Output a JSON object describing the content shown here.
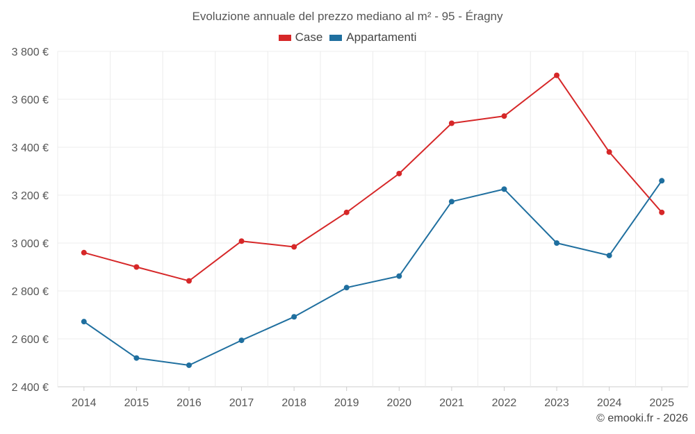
{
  "chart_data": {
    "type": "line",
    "title": "Evoluzione annuale del prezzo mediano al m² - 95 - Éragny",
    "categories": [
      "2014",
      "2015",
      "2016",
      "2017",
      "2018",
      "2019",
      "2020",
      "2021",
      "2022",
      "2023",
      "2024",
      "2025"
    ],
    "series": [
      {
        "name": "Case",
        "color": "#d62728",
        "values": [
          2960,
          2900,
          2842,
          3008,
          2984,
          3128,
          3290,
          3500,
          3530,
          3700,
          3380,
          3128
        ]
      },
      {
        "name": "Appartamenti",
        "color": "#1f6f9f",
        "values": [
          2672,
          2520,
          2490,
          2594,
          2692,
          2814,
          2862,
          3173,
          3225,
          3000,
          2948,
          3260
        ]
      }
    ],
    "ylim": [
      2400,
      3800
    ],
    "yticks": [
      2400,
      2600,
      2800,
      3000,
      3200,
      3400,
      3600,
      3800
    ],
    "ytick_labels": [
      "2 400 €",
      "2 600 €",
      "2 800 €",
      "3 000 €",
      "3 200 €",
      "3 400 €",
      "3 600 €",
      "3 800 €"
    ],
    "xlabel": "",
    "ylabel": "",
    "grid": true,
    "legend_position": "top-center"
  },
  "credit": "© emooki.fr - 2026"
}
